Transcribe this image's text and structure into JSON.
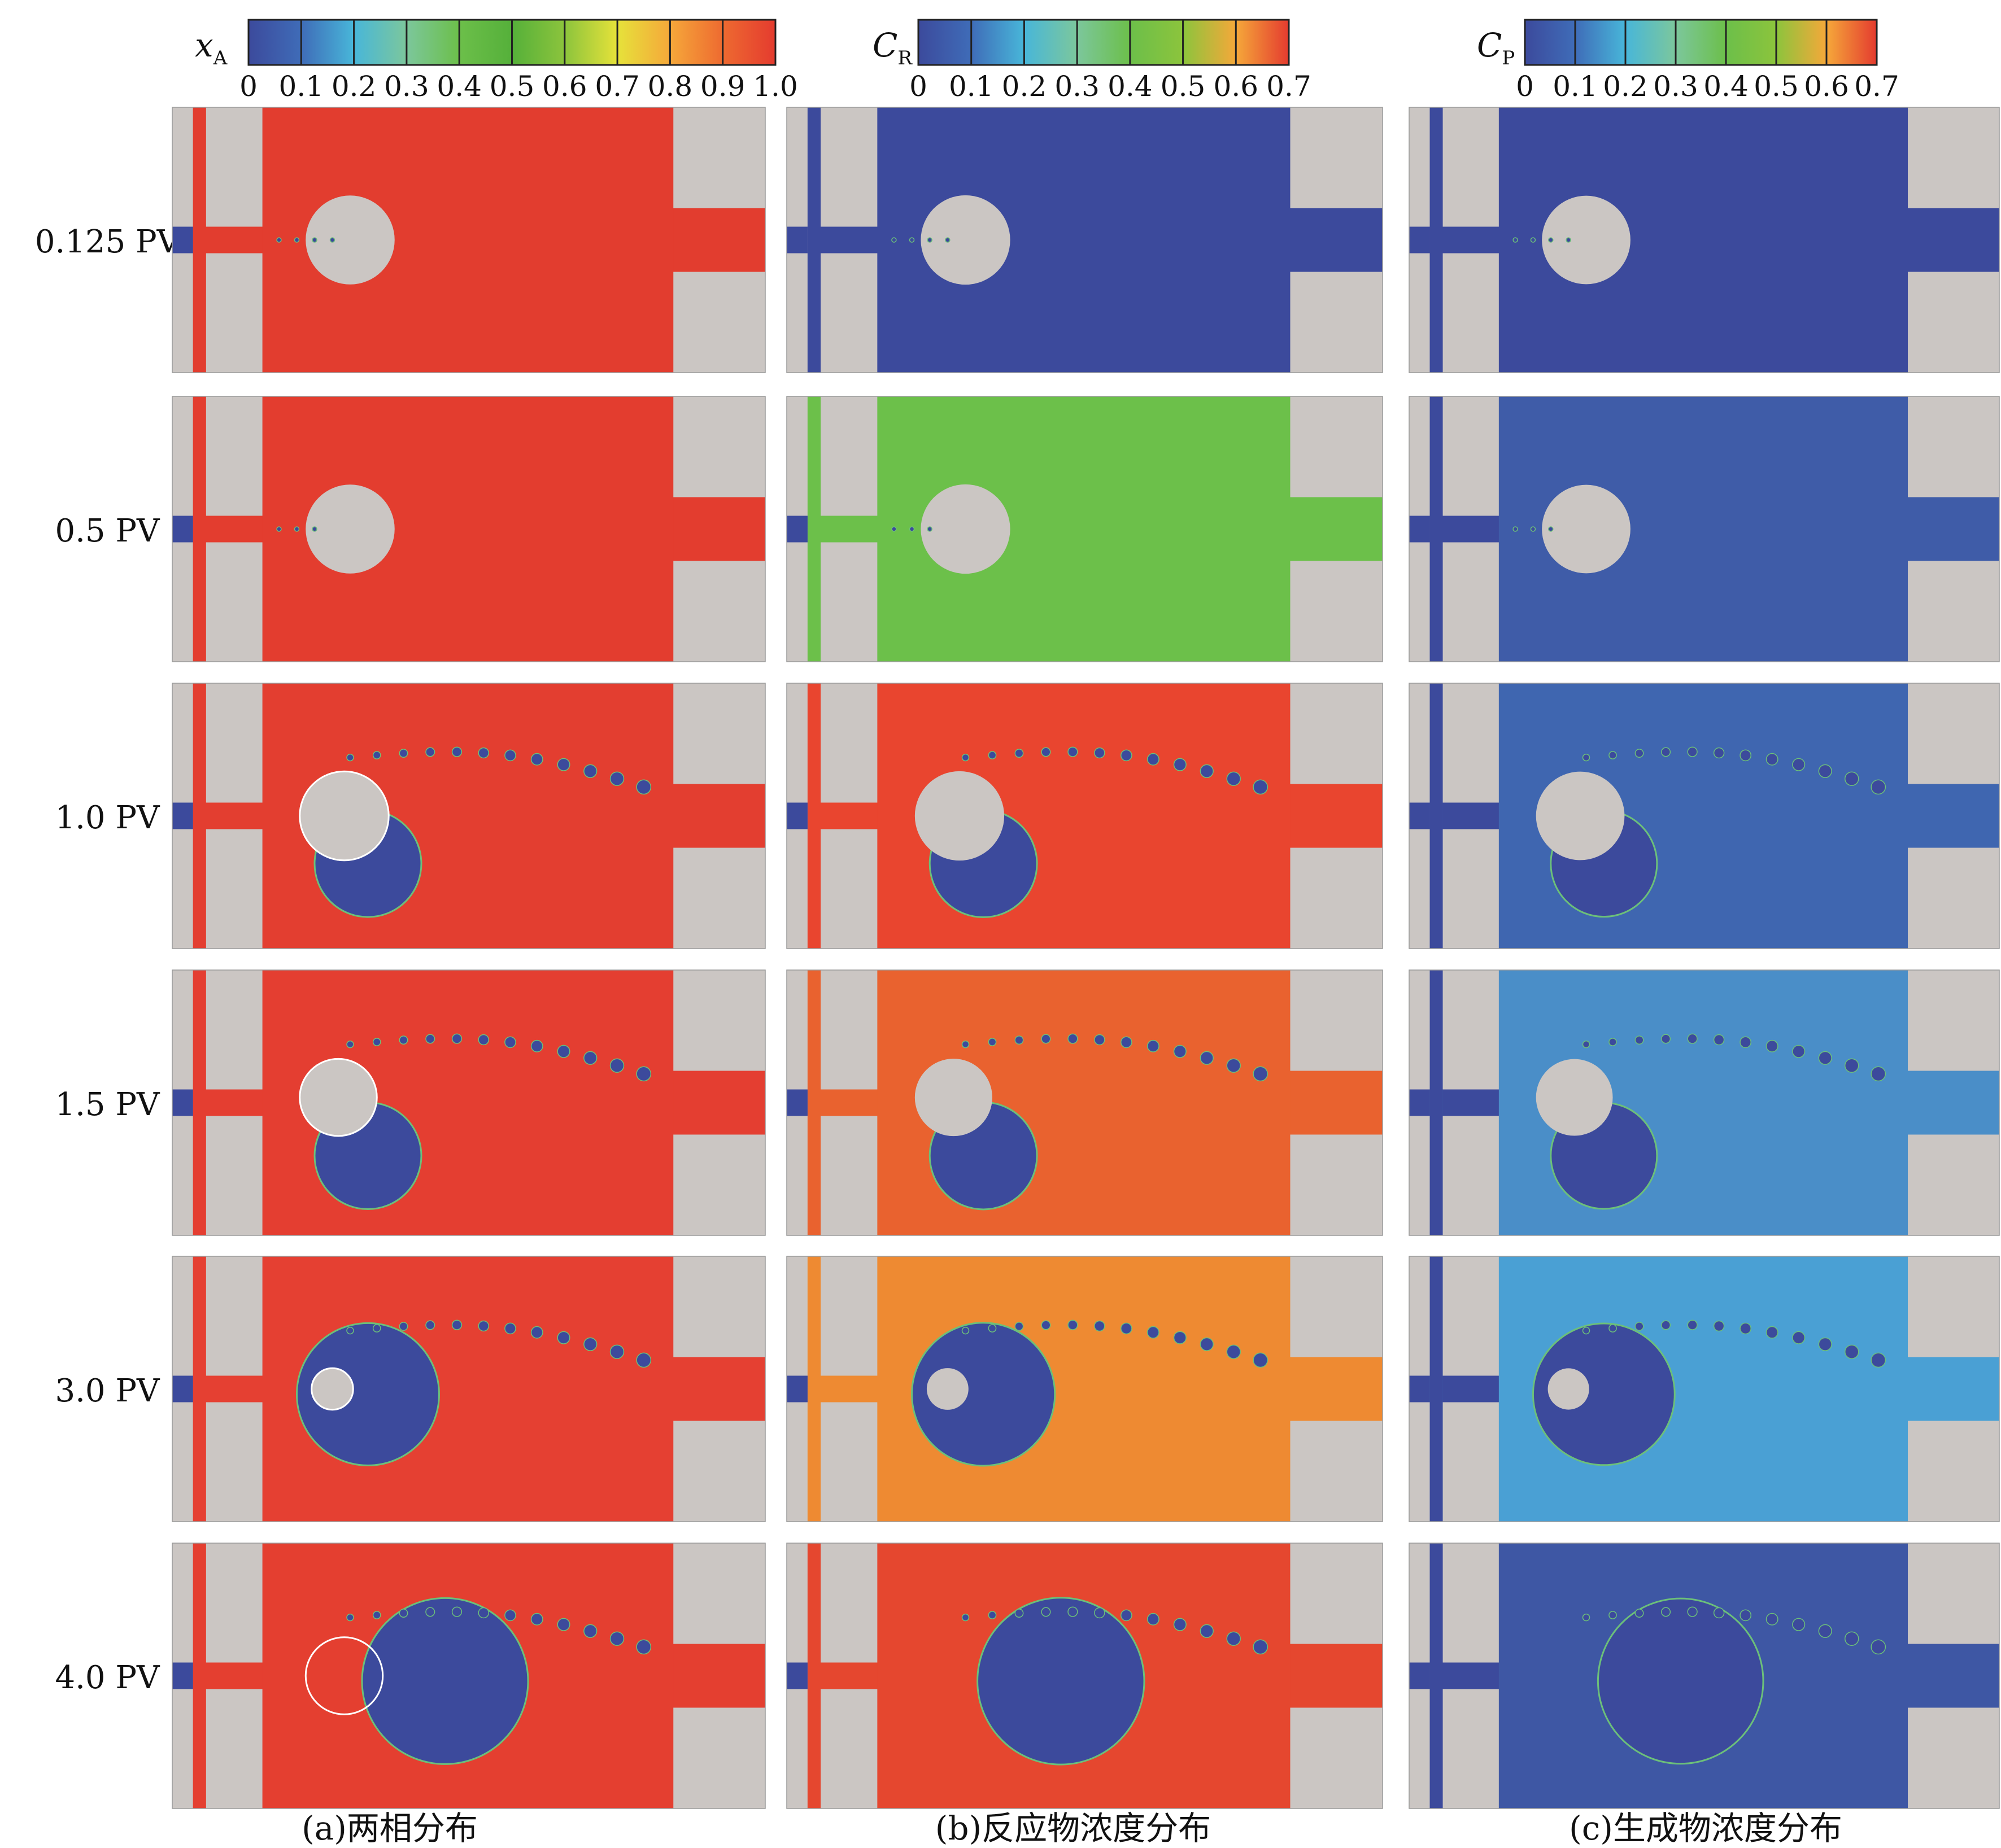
{
  "figure": {
    "captions": [
      "(a)两相分布",
      "(b)反应物浓度分布",
      "(c)生成物浓度分布"
    ]
  },
  "chart_data": {
    "type": "heatmap",
    "rows": [
      "0.125 PV",
      "0.5 PV",
      "1.0 PV",
      "1.5 PV",
      "3.0 PV",
      "4.0 PV"
    ],
    "columns": [
      {
        "symbol": "x",
        "subscript": "A",
        "ticks": [
          "0",
          "0.1",
          "0.2",
          "0.3",
          "0.4",
          "0.5",
          "0.6",
          "0.7",
          "0.8",
          "0.9",
          "1.0"
        ],
        "range": [
          0,
          1.0
        ]
      },
      {
        "symbol": "C",
        "subscript": "R",
        "ticks": [
          "0",
          "0.1",
          "0.2",
          "0.3",
          "0.4",
          "0.5",
          "0.6",
          "0.7"
        ],
        "range": [
          0,
          0.7
        ]
      },
      {
        "symbol": "C",
        "subscript": "P",
        "ticks": [
          "0",
          "0.1",
          "0.2",
          "0.3",
          "0.4",
          "0.5",
          "0.6",
          "0.7"
        ],
        "range": [
          0,
          0.7
        ]
      }
    ],
    "colormap": [
      "#3c4a9c",
      "#3f6cb8",
      "#48b6d9",
      "#7cc79c",
      "#6cbf4a",
      "#55b03a",
      "#8cc43c",
      "#e6e23a",
      "#f5a83a",
      "#ee6a30",
      "#e43b2f"
    ],
    "fields": {
      "xA": [
        "#e23d2f",
        "#e33d2f",
        "#e33e30",
        "#e43e31",
        "#e54032",
        "#e43f30"
      ],
      "CR": [
        "#3c4a9c",
        "#6cc04a",
        "#e9452f",
        "#e9622f",
        "#ee8a32",
        "#e5472f"
      ],
      "CP": [
        "#3c4a9c",
        "#3f5ca8",
        "#3f66b0",
        "#4a8ec8",
        "#4aa0d4",
        "#3e57a4"
      ]
    },
    "obstacle_color": "#cbc6c3",
    "droplet_color": "#3c4a9c"
  }
}
